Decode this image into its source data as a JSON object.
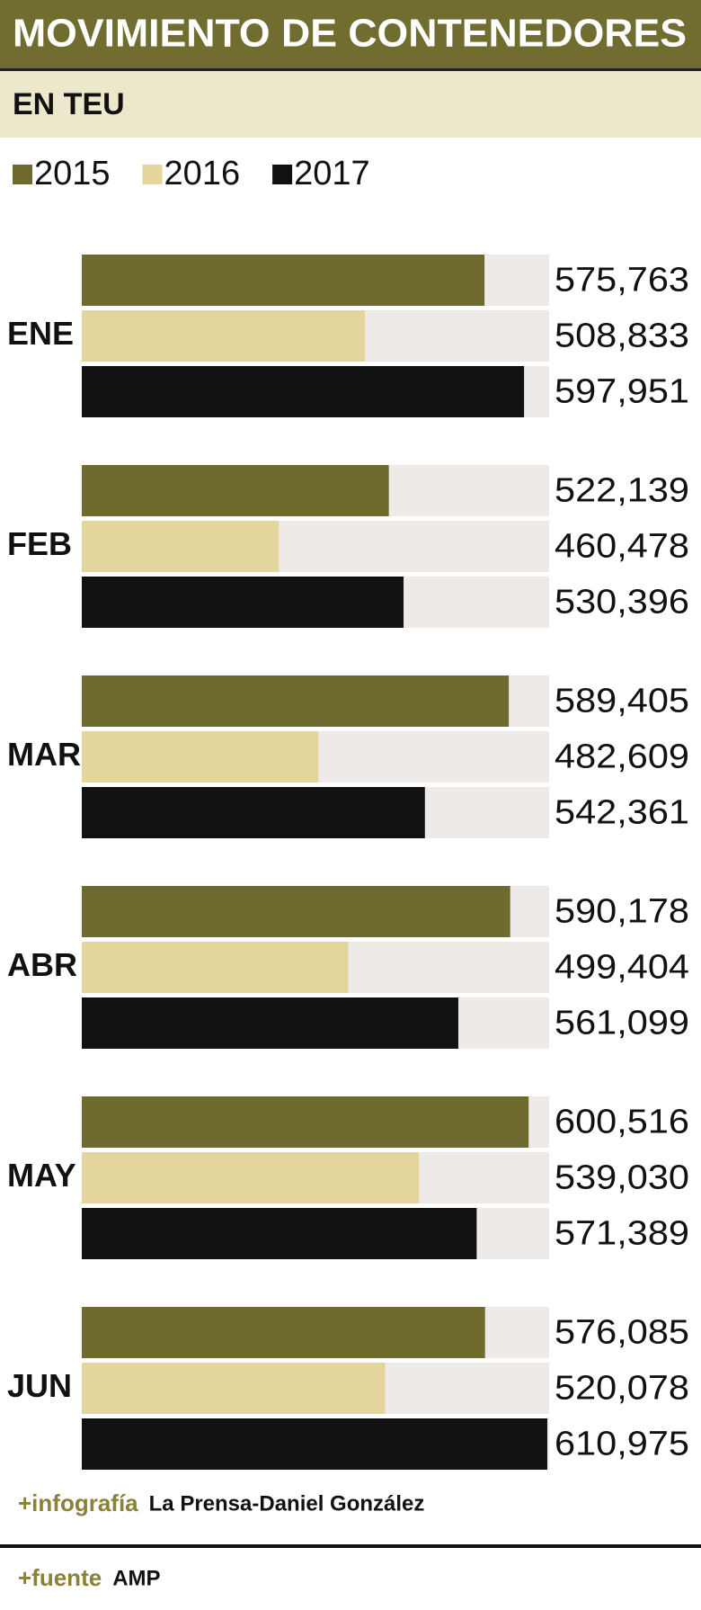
{
  "chart_data": {
    "type": "hbar-grouped",
    "title": "MOVIMIENTO DE CONTENEDORES",
    "subtitle": "EN TEU",
    "categories": [
      "ENE",
      "FEB",
      "MAR",
      "ABR",
      "MAY",
      "JUN"
    ],
    "series": [
      {
        "name": "2015",
        "color": "#6f6a2e",
        "values": [
          575763,
          522139,
          589405,
          590178,
          600516,
          576085
        ],
        "value_labels": [
          "575,763",
          "522,139",
          "589,405",
          "590,178",
          "600,516",
          "576,085"
        ]
      },
      {
        "name": "2016",
        "color": "#e3d59b",
        "values": [
          508833,
          460478,
          482609,
          499404,
          539030,
          520078
        ],
        "value_labels": [
          "508,833",
          "460,478",
          "482,609",
          "499,404",
          "539,030",
          "520,078"
        ]
      },
      {
        "name": "2017",
        "color": "#111111",
        "values": [
          597951,
          530396,
          542361,
          561099,
          571389,
          610975
        ],
        "value_labels": [
          "597,951",
          "530,396",
          "542,361",
          "561,099",
          "571,389",
          "610,975"
        ]
      }
    ],
    "xlim": [
      350000,
      612000
    ],
    "track_color": "#eeeae7",
    "credits": [
      {
        "label": "+infografía",
        "text": "La Prensa-Daniel González"
      },
      {
        "label": "+fuente",
        "text": "AMP"
      }
    ]
  }
}
